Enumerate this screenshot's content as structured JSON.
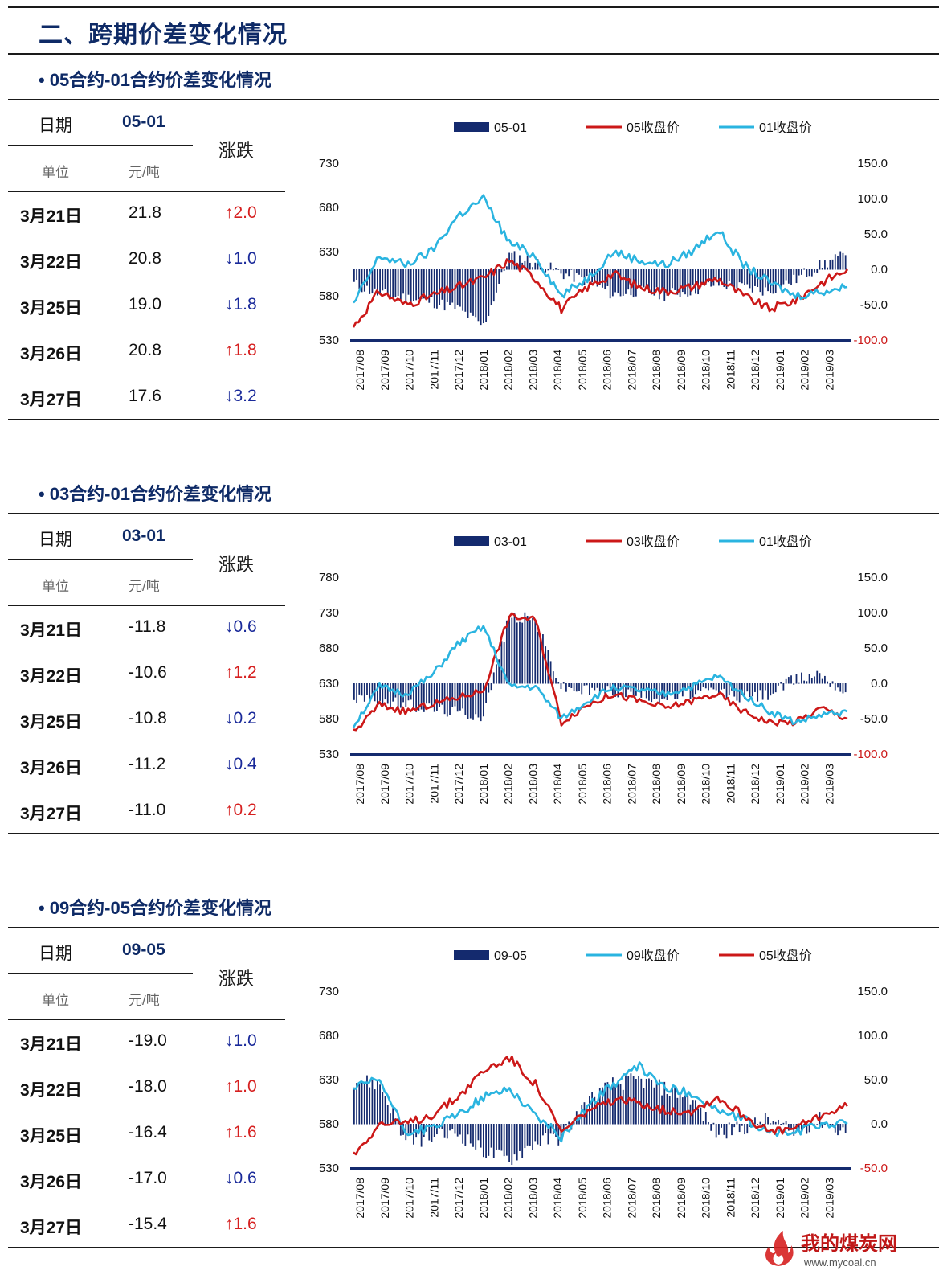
{
  "page_title": "二、跨期价差变化情况",
  "sections": [
    {
      "title": "05合约-01合约价差变化情况",
      "table": {
        "date_label": "日期",
        "code": "05-01",
        "unit_label": "单位",
        "unit": "元/吨",
        "change_label": "涨跌",
        "rows": [
          {
            "date": "3月21日",
            "value": "21.8",
            "dir": "up",
            "change": "2.0"
          },
          {
            "date": "3月22日",
            "value": "20.8",
            "dir": "down",
            "change": "1.0"
          },
          {
            "date": "3月25日",
            "value": "19.0",
            "dir": "down",
            "change": "1.8"
          },
          {
            "date": "3月26日",
            "value": "20.8",
            "dir": "up",
            "change": "1.8"
          },
          {
            "date": "3月27日",
            "value": "17.6",
            "dir": "down",
            "change": "3.2"
          }
        ]
      }
    },
    {
      "title": "03合约-01合约价差变化情况",
      "table": {
        "date_label": "日期",
        "code": "03-01",
        "unit_label": "单位",
        "unit": "元/吨",
        "change_label": "涨跌",
        "rows": [
          {
            "date": "3月21日",
            "value": "-11.8",
            "dir": "down",
            "change": "0.6"
          },
          {
            "date": "3月22日",
            "value": "-10.6",
            "dir": "up",
            "change": "1.2"
          },
          {
            "date": "3月25日",
            "value": "-10.8",
            "dir": "down",
            "change": "0.2"
          },
          {
            "date": "3月26日",
            "value": "-11.2",
            "dir": "down",
            "change": "0.4"
          },
          {
            "date": "3月27日",
            "value": "-11.0",
            "dir": "up",
            "change": "0.2"
          }
        ]
      }
    },
    {
      "title": "09合约-05合约价差变化情况",
      "table": {
        "date_label": "日期",
        "code": "09-05",
        "unit_label": "单位",
        "unit": "元/吨",
        "change_label": "涨跌",
        "rows": [
          {
            "date": "3月21日",
            "value": "-19.0",
            "dir": "down",
            "change": "1.0"
          },
          {
            "date": "3月22日",
            "value": "-18.0",
            "dir": "up",
            "change": "1.0"
          },
          {
            "date": "3月25日",
            "value": "-16.4",
            "dir": "up",
            "change": "1.6"
          },
          {
            "date": "3月26日",
            "value": "-17.0",
            "dir": "down",
            "change": "0.6"
          },
          {
            "date": "3月27日",
            "value": "-15.4",
            "dir": "up",
            "change": "1.6"
          }
        ]
      }
    }
  ],
  "arrows": {
    "up": "↑",
    "down": "↓"
  },
  "colors": {
    "title": "#0e2a66",
    "bar": "#142a6e",
    "red": "#cc1818",
    "cyan": "#2ab4e0",
    "up": "#d62020",
    "down": "#1a2a9a"
  },
  "watermark": {
    "text": "我的煤炭网",
    "url": "www.mycoal.cn"
  },
  "chart_data": [
    {
      "type": "bar+line",
      "categories": [
        "2017/08",
        "2017/09",
        "2017/10",
        "2017/11",
        "2017/12",
        "2018/01",
        "2018/02",
        "2018/03",
        "2018/04",
        "2018/05",
        "2018/06",
        "2018/07",
        "2018/08",
        "2018/09",
        "2018/10",
        "2018/11",
        "2018/12",
        "2019/01",
        "2019/02",
        "2019/03"
      ],
      "left_axis": {
        "ticks": [
          "730",
          "680",
          "630",
          "580",
          "530"
        ],
        "min": 530,
        "max": 730
      },
      "right_axis": {
        "ticks": [
          "150.0",
          "100.0",
          "50.0",
          "0.0",
          "-50.0",
          "-100.0"
        ],
        "min": -100,
        "max": 150,
        "highlight": "-100.0"
      },
      "series": [
        {
          "name": "05-01",
          "kind": "bar",
          "axis": "right",
          "color": "bar",
          "values": [
            -20,
            -35,
            -40,
            -45,
            -55,
            -80,
            20,
            10,
            -5,
            -15,
            -35,
            -30,
            -35,
            -30,
            -20,
            -25,
            -30,
            -15,
            5,
            20
          ]
        },
        {
          "name": "05收盘价",
          "kind": "line",
          "axis": "left",
          "color": "red",
          "values": [
            545,
            585,
            570,
            580,
            590,
            600,
            620,
            600,
            565,
            590,
            605,
            590,
            585,
            590,
            600,
            580,
            565,
            575,
            595,
            610
          ]
        },
        {
          "name": "01收盘价",
          "kind": "line",
          "axis": "left",
          "color": "cyan",
          "values": [
            570,
            625,
            615,
            630,
            670,
            690,
            640,
            625,
            580,
            600,
            630,
            620,
            615,
            630,
            655,
            615,
            595,
            580,
            585,
            590
          ]
        }
      ]
    },
    {
      "type": "bar+line",
      "categories": [
        "2017/08",
        "2017/09",
        "2017/10",
        "2017/11",
        "2017/12",
        "2018/01",
        "2018/02",
        "2018/03",
        "2018/04",
        "2018/05",
        "2018/06",
        "2018/07",
        "2018/08",
        "2018/09",
        "2018/10",
        "2018/11",
        "2018/12",
        "2019/01",
        "2019/02",
        "2019/03"
      ],
      "left_axis": {
        "ticks": [
          "780",
          "730",
          "680",
          "630",
          "580",
          "530"
        ],
        "min": 530,
        "max": 780
      },
      "right_axis": {
        "ticks": [
          "150.0",
          "100.0",
          "50.0",
          "0.0",
          "-50.0",
          "-100.0"
        ],
        "min": -100,
        "max": 150,
        "highlight": "-100.0"
      },
      "series": [
        {
          "name": "03-01",
          "kind": "bar",
          "axis": "right",
          "color": "bar",
          "values": [
            -20,
            -25,
            -30,
            -35,
            -40,
            -45,
            95,
            90,
            -5,
            -10,
            -10,
            -15,
            -20,
            -15,
            -10,
            -20,
            -15,
            5,
            15,
            -12
          ]
        },
        {
          "name": "03收盘价",
          "kind": "line",
          "axis": "left",
          "color": "red",
          "values": [
            560,
            600,
            590,
            600,
            610,
            620,
            725,
            720,
            575,
            600,
            615,
            605,
            595,
            605,
            615,
            590,
            575,
            575,
            595,
            580
          ]
        },
        {
          "name": "01收盘价",
          "kind": "line",
          "axis": "left",
          "color": "cyan",
          "values": [
            570,
            625,
            615,
            640,
            685,
            710,
            625,
            625,
            580,
            605,
            625,
            620,
            615,
            625,
            640,
            615,
            590,
            575,
            585,
            590
          ]
        }
      ]
    },
    {
      "type": "bar+line",
      "categories": [
        "2017/08",
        "2017/09",
        "2017/10",
        "2017/11",
        "2017/12",
        "2018/01",
        "2018/02",
        "2018/03",
        "2018/04",
        "2018/05",
        "2018/06",
        "2018/07",
        "2018/08",
        "2018/09",
        "2018/10",
        "2018/11",
        "2018/12",
        "2019/01",
        "2019/02",
        "2019/03"
      ],
      "left_axis": {
        "ticks": [
          "730",
          "680",
          "630",
          "580",
          "530"
        ],
        "min": 530,
        "max": 730
      },
      "right_axis": {
        "ticks": [
          "150.0",
          "100.0",
          "50.0",
          "0.0",
          "-50.0"
        ],
        "min": -50,
        "max": 150,
        "highlight": "-50.0"
      },
      "series": [
        {
          "name": "09-05",
          "kind": "bar",
          "axis": "right",
          "color": "bar",
          "values": [
            50,
            45,
            -20,
            -15,
            -10,
            -30,
            -40,
            -20,
            -15,
            25,
            45,
            50,
            40,
            30,
            -10,
            -5,
            5,
            -10,
            5,
            -10
          ]
        },
        {
          "name": "09收盘价",
          "kind": "line",
          "axis": "left",
          "color": "cyan",
          "values": [
            620,
            630,
            570,
            575,
            590,
            610,
            620,
            590,
            565,
            600,
            625,
            645,
            620,
            615,
            595,
            585,
            570,
            570,
            580,
            580
          ]
        },
        {
          "name": "05收盘价",
          "kind": "line",
          "axis": "left",
          "color": "red",
          "values": [
            545,
            580,
            580,
            590,
            610,
            640,
            655,
            625,
            570,
            595,
            605,
            605,
            595,
            595,
            610,
            590,
            570,
            575,
            590,
            600
          ]
        }
      ]
    }
  ]
}
